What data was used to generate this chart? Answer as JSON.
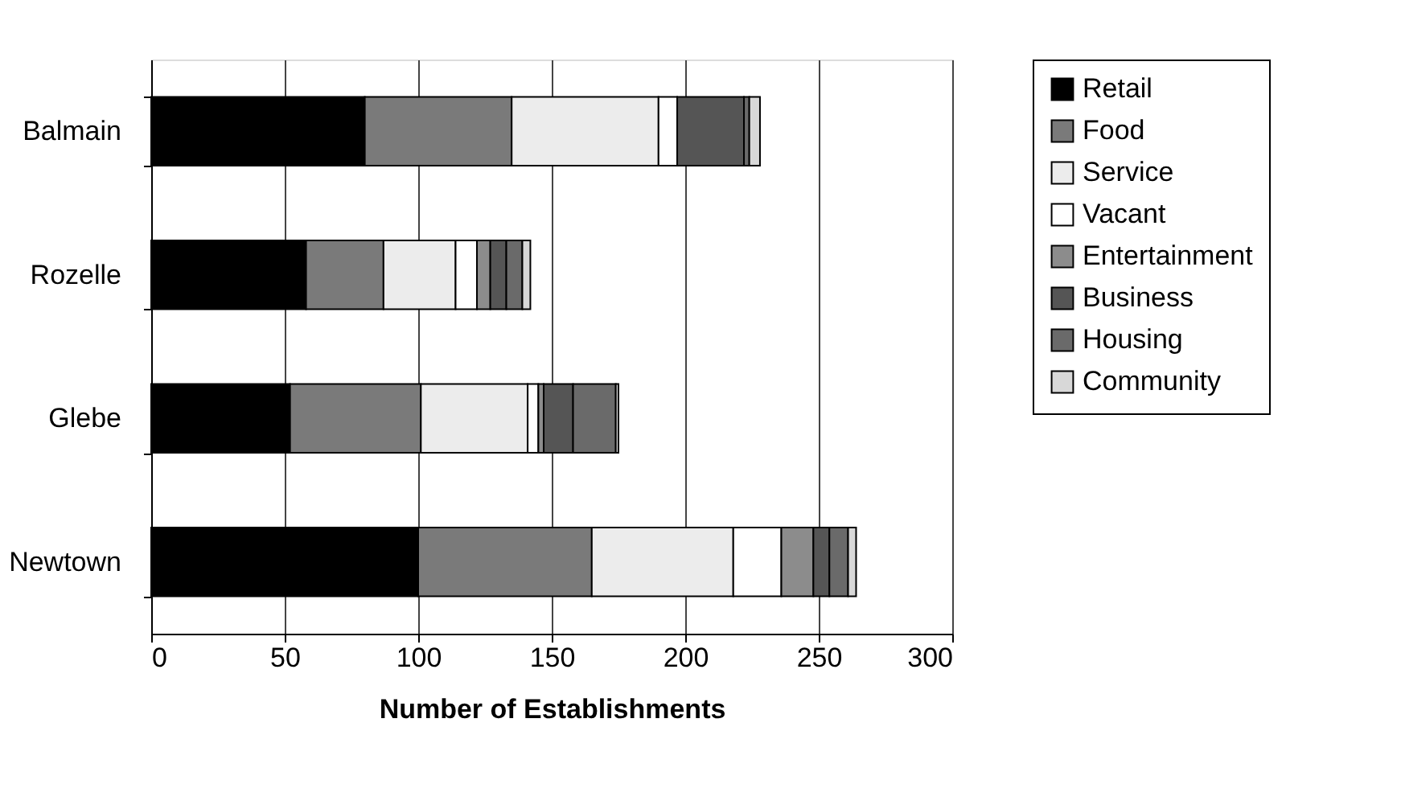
{
  "chart_data": {
    "type": "bar",
    "orientation": "horizontal",
    "stacked": true,
    "xlabel": "Number of Establishments",
    "categories": [
      "Balmain",
      "Rozelle",
      "Glebe",
      "Newtown"
    ],
    "series": [
      {
        "name": "Retail",
        "color": "#000000",
        "values": [
          80,
          58,
          52,
          100
        ]
      },
      {
        "name": "Food",
        "color": "#7a7a7a",
        "values": [
          55,
          29,
          49,
          65
        ]
      },
      {
        "name": "Service",
        "color": "#ececec",
        "values": [
          55,
          27,
          40,
          53
        ]
      },
      {
        "name": "Vacant",
        "color": "#ffffff",
        "values": [
          7,
          8,
          4,
          18
        ]
      },
      {
        "name": "Entertainment",
        "color": "#8c8c8c",
        "values": [
          0,
          5,
          2,
          12
        ]
      },
      {
        "name": "Business",
        "color": "#555555",
        "values": [
          25,
          6,
          11,
          6
        ]
      },
      {
        "name": "Housing",
        "color": "#6a6a6a",
        "values": [
          2,
          6,
          16,
          7
        ]
      },
      {
        "name": "Community",
        "color": "#d8d8d8",
        "values": [
          4,
          3,
          1,
          3
        ]
      }
    ],
    "xlim": [
      0,
      300
    ],
    "xticks": [
      0,
      50,
      100,
      150,
      200,
      250,
      300
    ],
    "grid": "x",
    "legend": "right"
  }
}
